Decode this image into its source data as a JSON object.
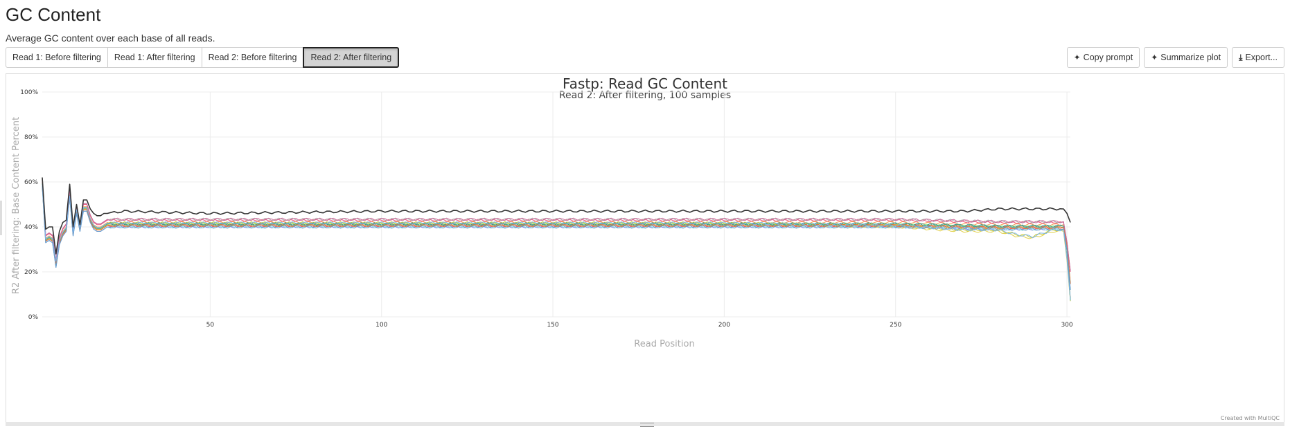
{
  "section": {
    "title": "GC Content",
    "description": "Average GC content over each base of all reads."
  },
  "tabs": [
    {
      "label": "Read 1: Before filtering",
      "active": false
    },
    {
      "label": "Read 1: After filtering",
      "active": false
    },
    {
      "label": "Read 2: Before filtering",
      "active": false
    },
    {
      "label": "Read 2: After filtering",
      "active": true
    }
  ],
  "actions": {
    "copy_prompt": "Copy prompt",
    "summarize_plot": "Summarize plot",
    "export": "Export..."
  },
  "colors": {
    "palette": [
      "#7cb5ec",
      "#f7a35c",
      "#90ed7d",
      "#8085e9",
      "#f15c80",
      "#e4d354",
      "#2b908f",
      "#f45b5b",
      "#91e8e1",
      "#aaaaaa",
      "#cccc33",
      "#55aa88",
      "#dd7733",
      "#6699cc",
      "#cc6699"
    ],
    "outlier": "#333333"
  },
  "chart_data": {
    "type": "line",
    "title": "Fastp: Read GC Content",
    "subtitle": "Read 2: After filtering, 100 samples",
    "xlabel": "Read Position",
    "ylabel": "R2 After filtering: Base Content Percent",
    "xlim": [
      1,
      301
    ],
    "ylim": [
      0,
      100
    ],
    "xticks": [
      50,
      100,
      150,
      200,
      250,
      300
    ],
    "yticks": [
      "0%",
      "20%",
      "40%",
      "60%",
      "80%",
      "100%"
    ],
    "grid": true,
    "credit": "Created with MultiQC",
    "series": [
      {
        "x": [
          1,
          2,
          3,
          4,
          5,
          6,
          7,
          8,
          9,
          10,
          11,
          12,
          13,
          14,
          15,
          16,
          17,
          18,
          19,
          20,
          25,
          50,
          100,
          150,
          200,
          250,
          270,
          280,
          290,
          296,
          299,
          300,
          301
        ],
        "y": [
          62,
          39,
          40,
          40,
          28,
          38,
          42,
          43,
          59,
          40,
          50,
          41,
          52,
          52,
          48,
          46,
          45,
          45,
          46,
          46,
          47,
          46,
          47,
          47,
          47,
          47,
          47,
          48,
          48,
          48,
          48,
          46,
          42
        ]
      },
      {
        "x": [
          1,
          2,
          3,
          4,
          5,
          6,
          7,
          8,
          9,
          10,
          11,
          12,
          13,
          14,
          15,
          16,
          17,
          18,
          19,
          20,
          25,
          50,
          100,
          150,
          200,
          250,
          280,
          296,
          299,
          300,
          301
        ],
        "y": [
          60,
          35,
          36,
          35,
          23,
          34,
          38,
          40,
          55,
          38,
          48,
          40,
          49,
          49,
          44,
          41,
          40,
          40,
          41,
          42,
          42,
          42,
          42,
          42,
          42,
          42,
          41,
          41,
          41,
          30,
          8
        ]
      },
      {
        "x": [
          1,
          2,
          3,
          4,
          5,
          6,
          7,
          8,
          9,
          10,
          11,
          12,
          13,
          14,
          15,
          16,
          17,
          18,
          19,
          20,
          25,
          50,
          100,
          150,
          200,
          250,
          280,
          296,
          299,
          300,
          301
        ],
        "y": [
          59,
          34,
          35,
          34,
          24,
          33,
          37,
          39,
          54,
          37,
          47,
          39,
          48,
          48,
          43,
          40,
          39,
          39,
          40,
          41,
          41,
          41,
          41,
          41,
          41,
          41,
          40,
          40,
          40,
          32,
          15
        ]
      },
      {
        "x": [
          1,
          2,
          3,
          4,
          5,
          6,
          7,
          8,
          9,
          10,
          11,
          12,
          13,
          14,
          15,
          16,
          17,
          18,
          19,
          20,
          25,
          50,
          100,
          150,
          200,
          250,
          280,
          296,
          299,
          300,
          301
        ],
        "y": [
          58,
          33,
          34,
          33,
          22,
          32,
          36,
          38,
          53,
          36,
          46,
          38,
          47,
          47,
          42,
          39,
          38,
          38,
          39,
          40,
          40,
          40,
          40,
          40,
          40,
          40,
          39,
          39,
          39,
          30,
          12
        ]
      },
      {
        "x": [
          1,
          2,
          3,
          4,
          5,
          6,
          7,
          8,
          9,
          10,
          11,
          12,
          13,
          14,
          15,
          16,
          17,
          18,
          19,
          20,
          25,
          50,
          100,
          150,
          200,
          250,
          280,
          296,
          299,
          300,
          301
        ],
        "y": [
          61,
          36,
          37,
          36,
          25,
          35,
          39,
          41,
          56,
          39,
          49,
          40,
          50,
          50,
          45,
          42,
          41,
          41,
          42,
          43,
          43,
          43,
          43,
          43,
          43,
          43,
          42,
          42,
          42,
          33,
          20
        ]
      },
      {
        "x": [
          1,
          2,
          3,
          4,
          5,
          6,
          7,
          8,
          9,
          10,
          11,
          12,
          13,
          14,
          15,
          16,
          17,
          18,
          19,
          20,
          25,
          50,
          100,
          150,
          200,
          250,
          260,
          270,
          280,
          285,
          290,
          296,
          299,
          300,
          301
        ],
        "y": [
          58,
          34,
          35,
          34,
          24,
          33,
          37,
          39,
          53,
          37,
          47,
          39,
          48,
          48,
          43,
          40,
          39,
          39,
          40,
          41,
          41,
          41,
          41,
          41,
          41,
          40,
          39,
          38,
          38,
          36,
          35,
          38,
          38,
          25,
          7
        ]
      }
    ]
  }
}
